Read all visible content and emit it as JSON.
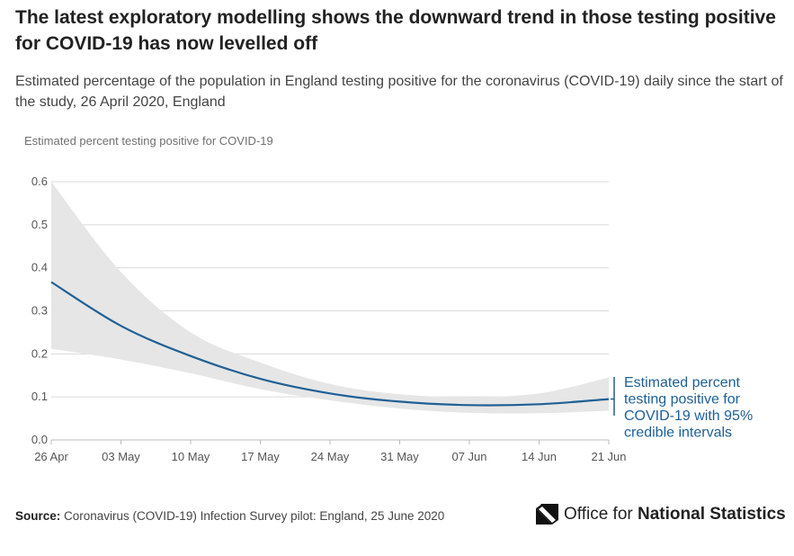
{
  "header": {
    "title": "The latest exploratory modelling shows the downward trend in those testing positive for COVID-19 has now levelled off",
    "subtitle": "Estimated percentage of the population in England testing positive for the coronavirus (COVID-19) daily since the start of the study, 26 April 2020, England"
  },
  "chart_data": {
    "type": "line",
    "ylabel": "Estimated percent testing positive for COVID-19",
    "xlabel": "",
    "ylim": [
      0,
      0.6
    ],
    "yticks": [
      "0.0",
      "0.1",
      "0.2",
      "0.3",
      "0.4",
      "0.5",
      "0.6"
    ],
    "xticks": [
      "26 Apr",
      "03 May",
      "10 May",
      "17 May",
      "24 May",
      "31 May",
      "07 Jun",
      "14 Jun",
      "21 Jun"
    ],
    "x": [
      "26 Apr",
      "03 May",
      "10 May",
      "17 May",
      "24 May",
      "31 May",
      "07 Jun",
      "14 Jun",
      "21 Jun"
    ],
    "series": [
      {
        "name": "Estimated percent testing positive for COVID-19 with 95% credible intervals",
        "color": "#206095",
        "values": [
          0.367,
          0.265,
          0.195,
          0.142,
          0.108,
          0.089,
          0.081,
          0.083,
          0.095
        ],
        "lower": [
          0.212,
          0.187,
          0.155,
          0.118,
          0.092,
          0.073,
          0.063,
          0.062,
          0.068
        ],
        "upper": [
          0.6,
          0.39,
          0.25,
          0.18,
          0.13,
          0.106,
          0.1,
          0.108,
          0.145
        ]
      }
    ],
    "grid": true,
    "legend": "right",
    "band_color": "#e6e6e6"
  },
  "footer": {
    "source_label": "Source:",
    "source_text": "Coronavirus (COVID-19) Infection Survey pilot: England, 25 June 2020",
    "logo_text_1": "Office for",
    "logo_text_2": "National Statistics"
  }
}
